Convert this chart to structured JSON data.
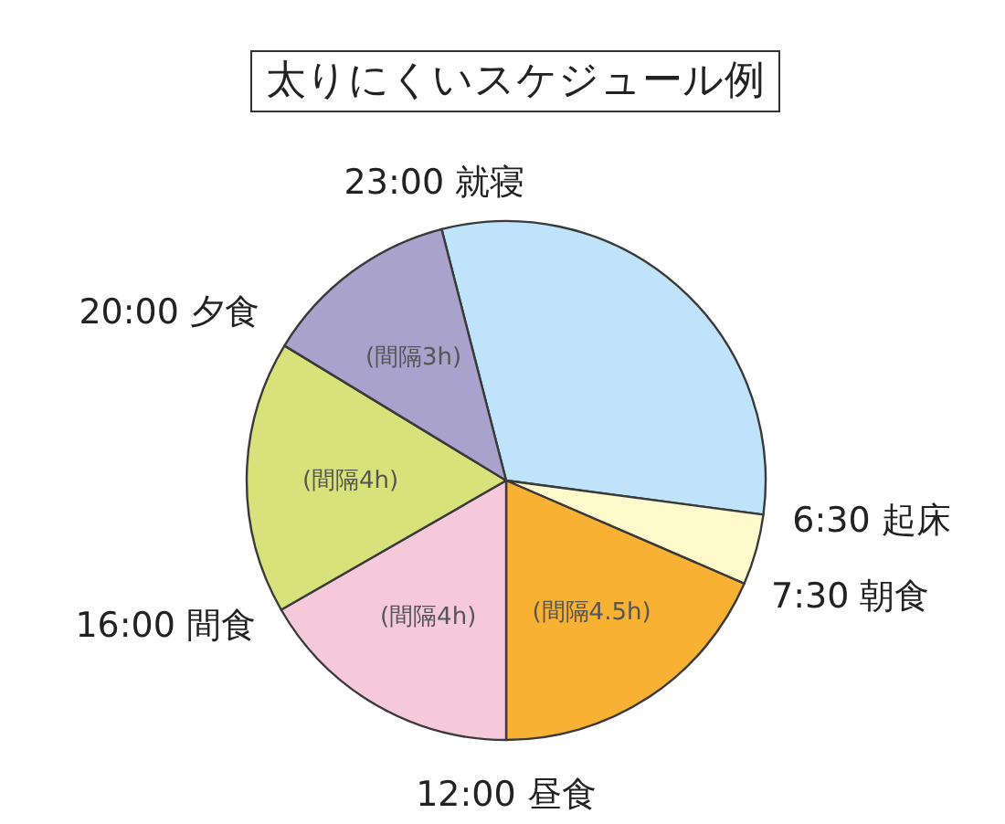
{
  "chart_data": {
    "type": "pie",
    "title": "太りにくいスケジュール例",
    "categories": [
      "23:00 就寝",
      "6:30 起床",
      "7:30 朝食",
      "12:00 昼食",
      "16:00 間食",
      "20:00 夕食"
    ],
    "values": [
      31.1,
      4.4,
      18.5,
      16.7,
      17.0,
      12.3
    ],
    "colors": [
      "#bfe3fb",
      "#fffacc",
      "#f8b133",
      "#f6c9da",
      "#d7e37a",
      "#a9a2cc"
    ],
    "value_labels": [
      null,
      null,
      "(間隔4.5h)",
      "(間隔4h)",
      "(間隔4h)",
      "(間隔3h)"
    ]
  }
}
